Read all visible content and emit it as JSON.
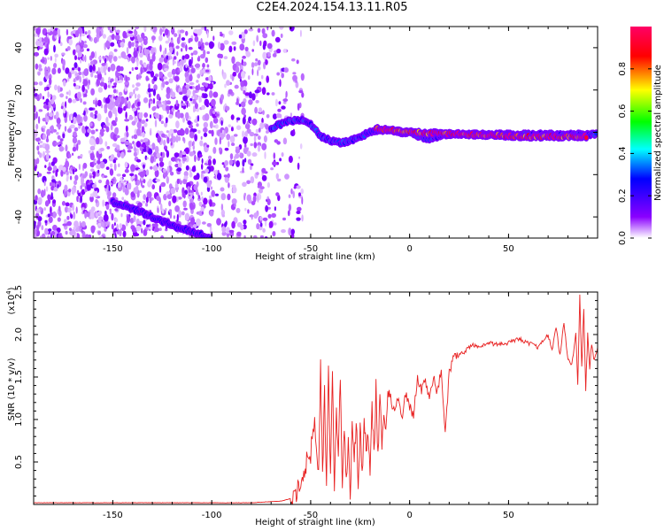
{
  "figure": {
    "title": "C2E4.2024.154.13.11.R05"
  },
  "chart_data": [
    {
      "type": "heatmap",
      "title": "C2E4.2024.154.13.11.R05",
      "xlabel": "Height of straight line (km)",
      "ylabel": "Frequency (Hz)",
      "xlim": [
        -190,
        95
      ],
      "ylim": [
        -50,
        50
      ],
      "xticks": [
        -150,
        -100,
        -50,
        0,
        50
      ],
      "yticks": [
        -40,
        -20,
        0,
        20,
        40
      ],
      "colorbar": {
        "label": "Normalized spectral amplitude",
        "ticks": [
          "0.0",
          "0.2",
          "0.4",
          "0.6",
          "0.8"
        ],
        "range": [
          0,
          1
        ],
        "colormap": [
          "#ffffff",
          "#8a00ff",
          "#0000ff",
          "#00ffff",
          "#00ff00",
          "#ffff00",
          "#ff0000",
          "#ff0066"
        ]
      },
      "ridges": [
        {
          "x": [
            -150,
            -140,
            -130,
            -120,
            -110,
            -100
          ],
          "y": [
            -33,
            -36,
            -40,
            -44,
            -47,
            -50
          ],
          "amplitude": 0.25
        },
        {
          "x": [
            -70,
            -62,
            -55,
            -50,
            -45,
            -40,
            -35,
            -30,
            -25,
            -20,
            -15,
            -10,
            -5,
            0,
            5,
            10,
            20,
            40,
            60,
            80,
            95
          ],
          "y": [
            2,
            5,
            6,
            4,
            -2,
            -4,
            -5,
            -4,
            -2,
            0,
            1,
            1,
            0,
            0,
            -2,
            -3,
            -1,
            -1,
            -1,
            -1,
            -1
          ],
          "amplitude": 0.3
        },
        {
          "x": [
            -17,
            -10,
            0,
            60,
            70,
            85,
            90
          ],
          "y": [
            2,
            1,
            0,
            -2,
            -2,
            -2,
            -2
          ],
          "amplitude": 0.9
        }
      ],
      "noise_region": {
        "x_from": -190,
        "x_to": -72,
        "amplitude_max": 0.2
      }
    },
    {
      "type": "line",
      "xlabel": "Height of straight line (km)",
      "ylabel": "SNR (10 * v/v)",
      "y_exponent_label": "(x10",
      "y_exponent_sup": "4",
      "y_exponent_close": ")",
      "xlim": [
        -190,
        95
      ],
      "ylim": [
        0,
        2.5
      ],
      "xticks": [
        -150,
        -100,
        -50,
        0,
        50
      ],
      "yticks": [
        "0.5",
        "1.0",
        "1.5",
        "2.0",
        "2.5"
      ],
      "series": [
        {
          "color": "#e82020",
          "x": [
            -190,
            -150,
            -100,
            -80,
            -65,
            -58,
            -55,
            -52,
            -50,
            -48,
            -46,
            -45,
            -44,
            -43,
            -42,
            -41,
            -40,
            -39,
            -38,
            -37,
            -36,
            -35,
            -34,
            -33,
            -32,
            -31,
            -30,
            -29,
            -28,
            -27,
            -26,
            -25,
            -24,
            -23,
            -22,
            -21,
            -20,
            -19,
            -18,
            -17,
            -16,
            -15,
            -14,
            -13,
            -12,
            -11,
            -10,
            -8,
            -6,
            -4,
            -2,
            0,
            2,
            4,
            6,
            8,
            10,
            12,
            14,
            16,
            18,
            20,
            22,
            24,
            26,
            28,
            30,
            32,
            35,
            40,
            45,
            50,
            55,
            60,
            65,
            70,
            72,
            74,
            76,
            78,
            80,
            82,
            84,
            85,
            86,
            87,
            88,
            89,
            90,
            91,
            92,
            93,
            94,
            95
          ],
          "y": [
            0.02,
            0.02,
            0.02,
            0.02,
            0.04,
            0.08,
            0.25,
            0.5,
            0.6,
            1.0,
            0.3,
            1.6,
            0.4,
            1.3,
            0.2,
            1.7,
            0.3,
            1.6,
            0.1,
            1.1,
            0.5,
            1.5,
            0.2,
            0.9,
            0.3,
            0.7,
            0.1,
            1.0,
            0.4,
            1.05,
            0.2,
            0.9,
            0.35,
            1.0,
            0.6,
            0.8,
            0.3,
            1.2,
            0.55,
            1.4,
            0.5,
            1.3,
            0.7,
            1.05,
            0.9,
            1.3,
            1.3,
            1.1,
            1.25,
            1.0,
            1.3,
            1.15,
            1.05,
            1.5,
            1.35,
            1.45,
            1.25,
            1.5,
            1.3,
            1.6,
            0.85,
            1.55,
            1.7,
            1.75,
            1.78,
            1.8,
            1.85,
            1.88,
            1.85,
            1.9,
            1.88,
            1.9,
            1.95,
            1.9,
            1.85,
            2.0,
            1.8,
            2.1,
            1.75,
            2.15,
            1.7,
            1.65,
            2.0,
            1.4,
            2.45,
            1.6,
            2.3,
            1.35,
            2.0,
            1.6,
            1.9,
            1.7,
            1.75,
            1.85
          ]
        }
      ]
    }
  ]
}
